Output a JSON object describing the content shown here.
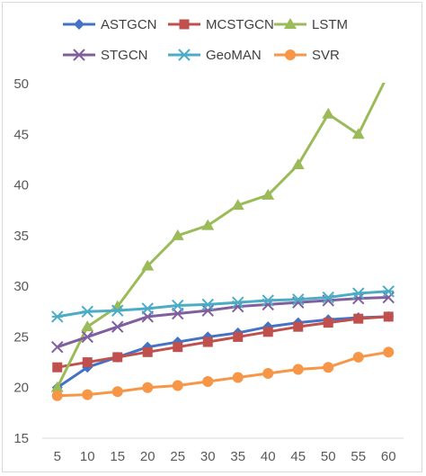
{
  "chart_data": {
    "type": "line",
    "title": "",
    "xlabel": "",
    "ylabel": "",
    "x": [
      5,
      10,
      15,
      20,
      25,
      30,
      35,
      40,
      45,
      50,
      55,
      60
    ],
    "ylim": [
      15,
      50
    ],
    "yticks": [
      15,
      20,
      25,
      30,
      35,
      40,
      45,
      50
    ],
    "grid": false,
    "legend_position": "top",
    "series": [
      {
        "name": "ASTGCN",
        "color": "#4472c4",
        "marker": "diamond",
        "values": [
          20,
          22,
          23,
          24,
          24.5,
          25,
          25.4,
          26,
          26.4,
          26.7,
          26.9,
          27
        ]
      },
      {
        "name": "MCSTGCN",
        "color": "#c0504d",
        "marker": "square",
        "values": [
          22,
          22.5,
          23,
          23.5,
          24,
          24.5,
          25,
          25.5,
          26,
          26.4,
          26.8,
          27
        ]
      },
      {
        "name": "LSTM",
        "color": "#9bbb59",
        "marker": "triangle",
        "values": [
          20,
          26,
          28,
          32,
          35,
          36,
          38,
          39,
          42,
          47,
          45,
          51
        ]
      },
      {
        "name": "STGCN",
        "color": "#7f5f9e",
        "marker": "x",
        "values": [
          24,
          25,
          26,
          27,
          27.3,
          27.6,
          28,
          28.2,
          28.4,
          28.6,
          28.8,
          28.9
        ]
      },
      {
        "name": "GeoMAN",
        "color": "#4bacc6",
        "marker": "star",
        "values": [
          27,
          27.5,
          27.6,
          27.8,
          28.1,
          28.2,
          28.4,
          28.6,
          28.7,
          28.9,
          29.3,
          29.5
        ]
      },
      {
        "name": "SVR",
        "color": "#f79646",
        "marker": "circle",
        "values": [
          19.2,
          19.3,
          19.6,
          20,
          20.2,
          20.6,
          21,
          21.4,
          21.8,
          22,
          23,
          23.5
        ]
      }
    ]
  }
}
